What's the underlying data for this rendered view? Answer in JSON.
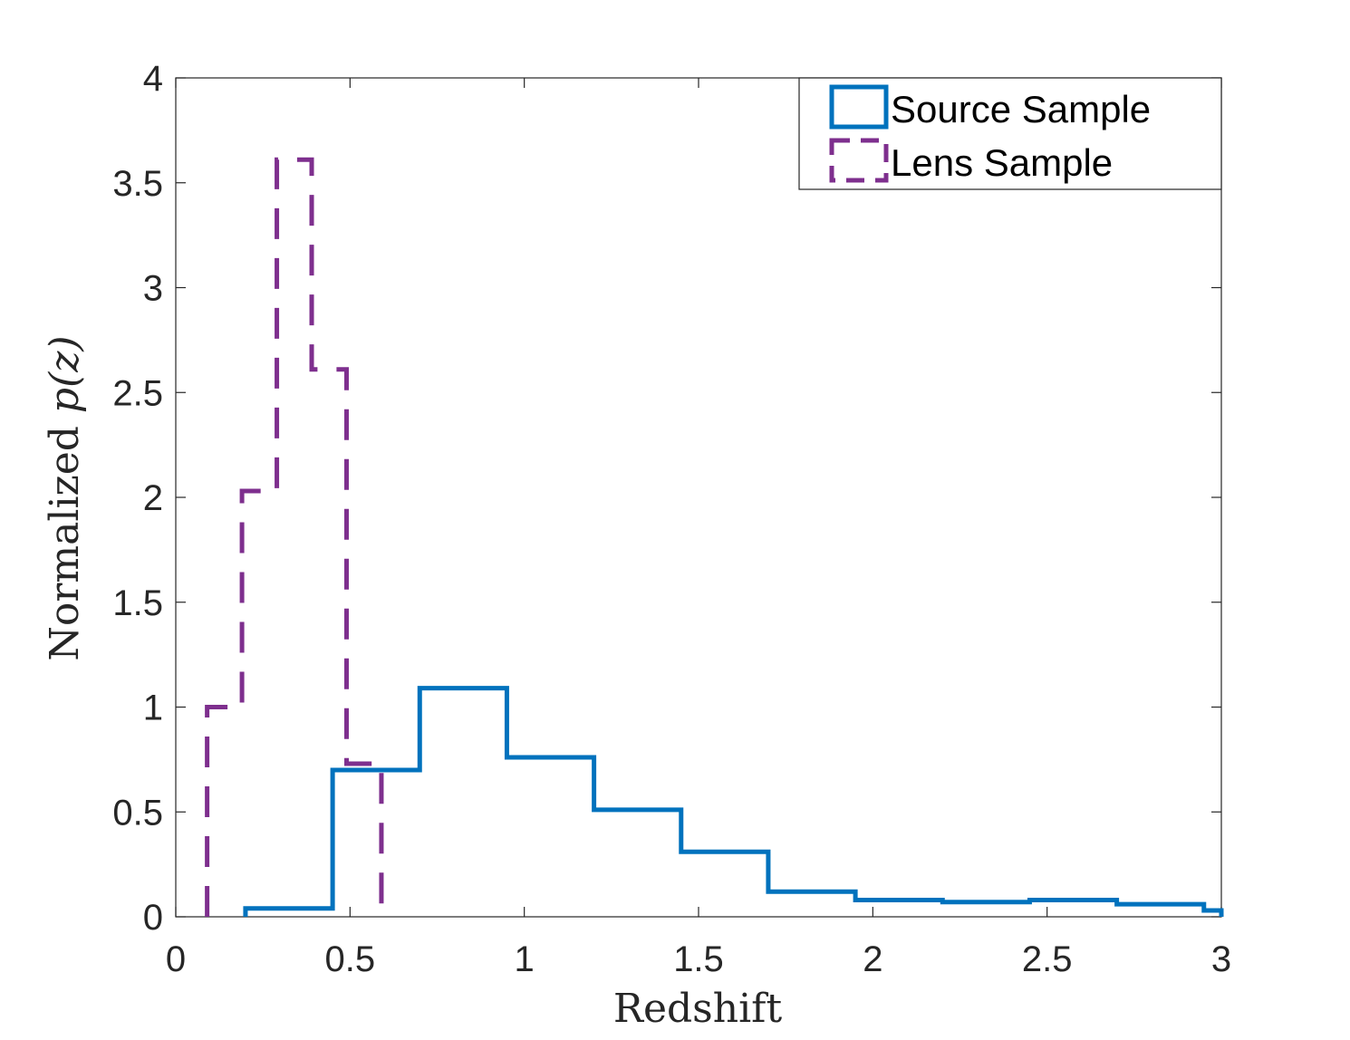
{
  "chart_data": {
    "type": "histogram-stairs",
    "title": "",
    "xlabel": "Redshift",
    "ylabel": {
      "prefix": "Normalized ",
      "math": "p(z)"
    },
    "xlim": [
      0,
      3
    ],
    "ylim": [
      0,
      4
    ],
    "xticks": [
      "0",
      "0.5",
      "1",
      "1.5",
      "2",
      "2.5",
      "3"
    ],
    "yticks": [
      "0",
      "0.5",
      "1",
      "1.5",
      "2",
      "2.5",
      "3",
      "3.5",
      "4"
    ],
    "legend": {
      "placement": "top-right",
      "entries": [
        "Source Sample",
        "Lens Sample"
      ]
    },
    "series": [
      {
        "name": "Source Sample",
        "style": "solid",
        "color": "#0072BD",
        "edges": [
          0.2,
          0.45,
          0.7,
          0.95,
          1.2,
          1.45,
          1.7,
          1.95,
          2.2,
          2.45,
          2.7,
          2.95,
          3.0
        ],
        "values": [
          0.04,
          0.7,
          1.09,
          0.76,
          0.51,
          0.31,
          0.12,
          0.08,
          0.07,
          0.08,
          0.06,
          0.03
        ]
      },
      {
        "name": "Lens Sample",
        "style": "dashed",
        "color": "#7E2F8E",
        "edges": [
          0.09,
          0.19,
          0.29,
          0.39,
          0.49,
          0.59
        ],
        "values": [
          1.0,
          2.03,
          3.61,
          2.61,
          0.73
        ]
      }
    ]
  }
}
